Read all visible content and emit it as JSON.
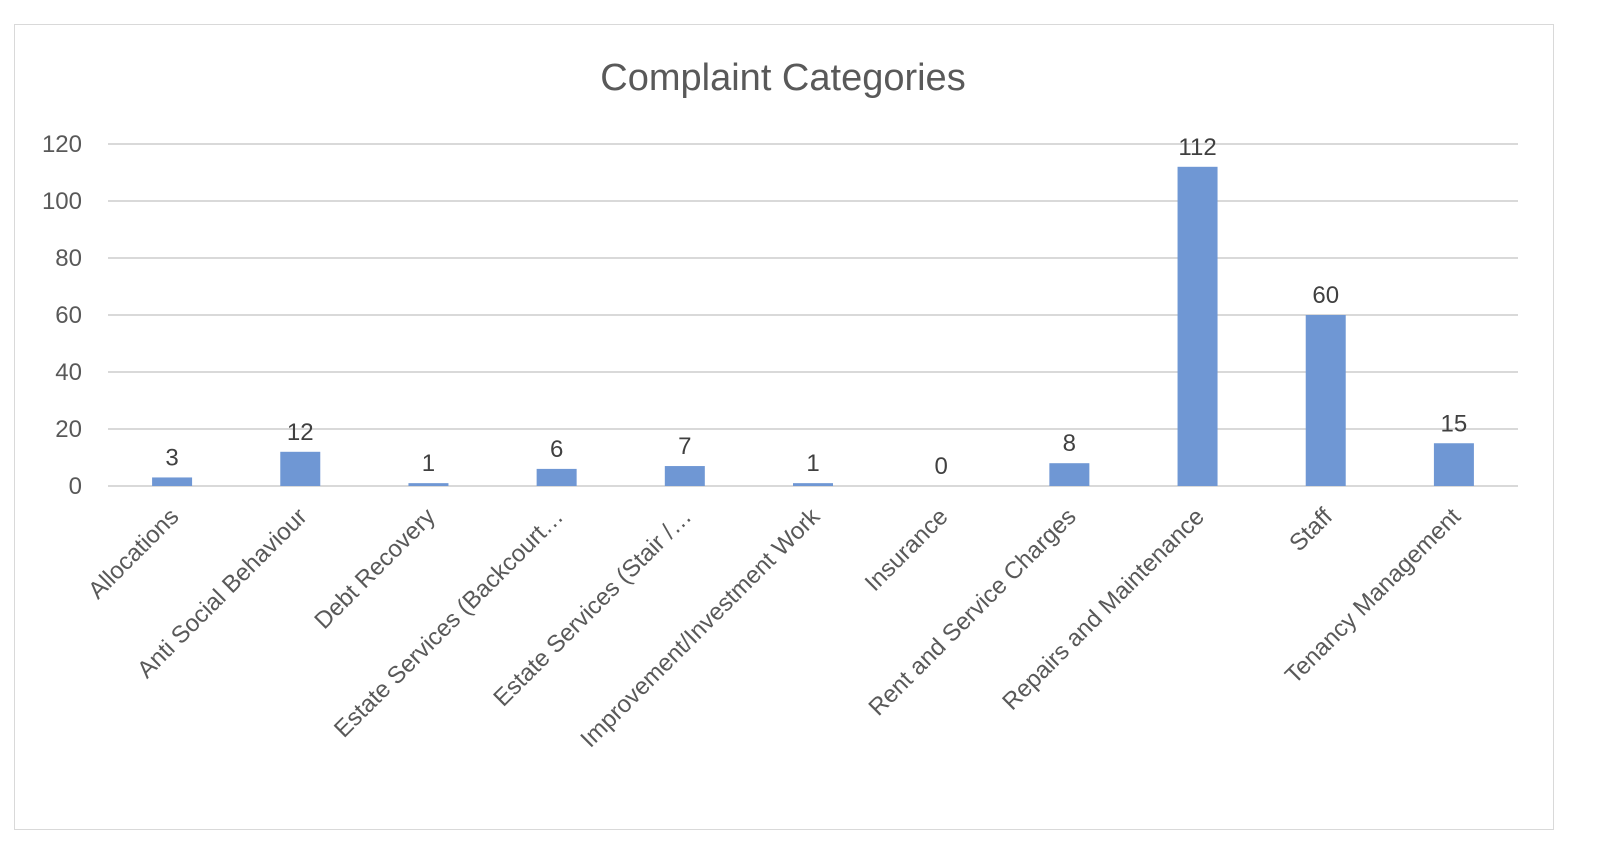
{
  "chart_data": {
    "type": "bar",
    "title": "Complaint Categories",
    "xlabel": "",
    "ylabel": "",
    "ylim": [
      0,
      120
    ],
    "yticks": [
      0,
      20,
      40,
      60,
      80,
      100,
      120
    ],
    "grid": true,
    "legend": "none",
    "bar_color": "#6f97d4",
    "gridline_color": "#d9d9d9",
    "text_color": "#595959",
    "categories": [
      "Allocations",
      "Anti Social Behaviour",
      "Debt Recovery",
      "Estate Services (Backcourt…",
      "Estate Services (Stair  /…",
      "Improvement/Investment Work",
      "Insurance",
      "Rent and Service Charges",
      "Repairs and Maintenance",
      "Staff",
      "Tenancy Management"
    ],
    "values": [
      3,
      12,
      1,
      6,
      7,
      1,
      0,
      8,
      112,
      60,
      15
    ],
    "data_labels": [
      "3",
      "12",
      "1",
      "6",
      "7",
      "1",
      "0",
      "8",
      "112",
      "60",
      "15"
    ]
  }
}
